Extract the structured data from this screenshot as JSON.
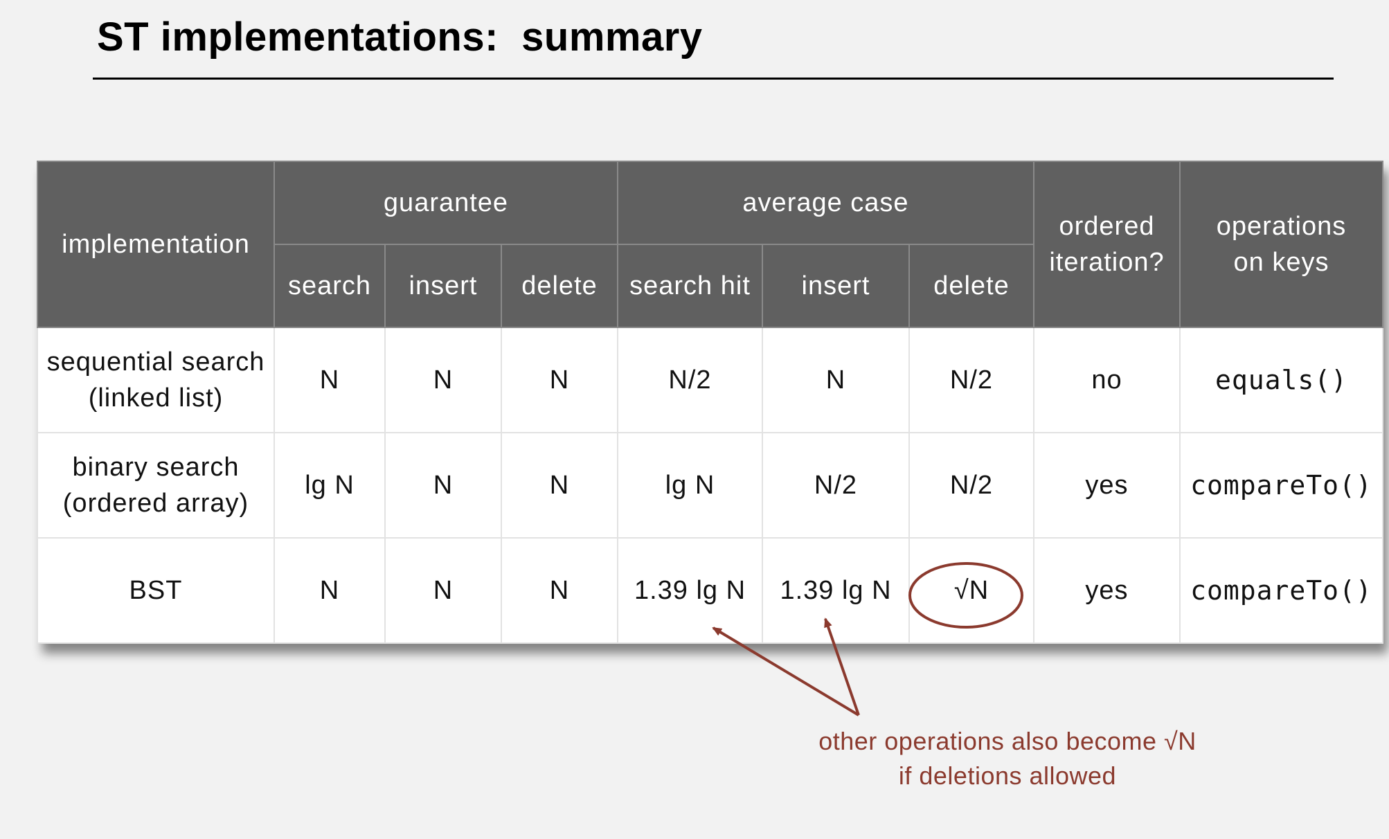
{
  "title": "ST implementations:  summary",
  "table": {
    "header": {
      "implementation": "implementation",
      "guarantee": "guarantee",
      "average_case": "average case",
      "ordered_iteration": [
        "ordered",
        "iteration?"
      ],
      "operations_on_keys": [
        "operations",
        "on keys"
      ],
      "subcolumns": {
        "g_search": "search",
        "g_insert": "insert",
        "g_delete": "delete",
        "a_search_hit": "search hit",
        "a_insert": "insert",
        "a_delete": "delete"
      }
    },
    "rows": [
      {
        "implementation": [
          "sequential search",
          "(linked list)"
        ],
        "g_search": "N",
        "g_insert": "N",
        "g_delete": "N",
        "a_search_hit": "N/2",
        "a_insert": "N",
        "a_delete": "N/2",
        "ordered": "no",
        "operations": "equals()"
      },
      {
        "implementation": [
          "binary search",
          "(ordered array)"
        ],
        "g_search": "lg N",
        "g_insert": "N",
        "g_delete": "N",
        "a_search_hit": "lg N",
        "a_insert": "N/2",
        "a_delete": "N/2",
        "ordered": "yes",
        "operations": "compareTo()"
      },
      {
        "implementation": [
          "BST"
        ],
        "g_search": "N",
        "g_insert": "N",
        "g_delete": "N",
        "a_search_hit": "1.39 lg N",
        "a_insert": "1.39 lg N",
        "a_delete": "√N",
        "ordered": "yes",
        "operations": "compareTo()"
      }
    ]
  },
  "annotation": {
    "line1": "other operations also become √N",
    "line2": "if deletions allowed",
    "color": "#8b3a2e"
  },
  "colors": {
    "header_bg": "#606060",
    "header_text": "#ffffff",
    "background": "#f2f2f2"
  }
}
